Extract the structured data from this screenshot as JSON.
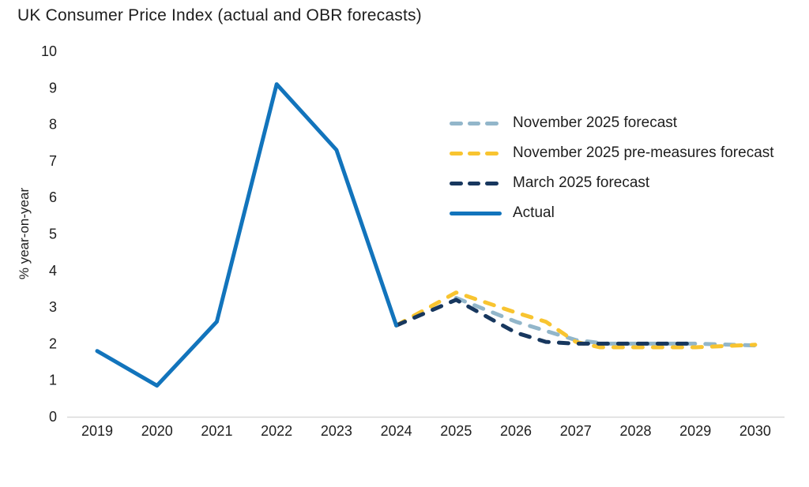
{
  "title": "UK Consumer Price Index (actual and OBR forecasts)",
  "colors": {
    "actual": "#1274bc",
    "november_2025_forecast": "#92b6ca",
    "november_2025_pre_measures_forecast": "#f8c430",
    "march_2025_forecast": "#17375e",
    "axis_line": "#d9d9d9",
    "text": "#1e1e1e"
  },
  "chart_data": {
    "type": "line",
    "title": "UK Consumer Price Index (actual and OBR forecasts)",
    "xlabel": "",
    "ylabel": "% year-on-year",
    "ylim": [
      0,
      10
    ],
    "y_ticks": [
      0,
      1,
      2,
      3,
      4,
      5,
      6,
      7,
      8,
      9,
      10
    ],
    "x_ticks": [
      "2019",
      "2020",
      "2021",
      "2022",
      "2023",
      "2024",
      "2025",
      "2026",
      "2027",
      "2028",
      "2029",
      "2030"
    ],
    "grid": false,
    "legend_position": "inside-upper-right",
    "series": [
      {
        "name": "November 2025 forecast",
        "color": "#92b6ca",
        "style": "dashed",
        "points": [
          [
            2025,
            3.25
          ],
          [
            2026,
            2.6
          ],
          [
            2026.5,
            2.35
          ],
          [
            2027,
            2.1
          ],
          [
            2027.5,
            2.0
          ],
          [
            2028,
            2.0
          ],
          [
            2029,
            2.0
          ],
          [
            2030,
            1.95
          ]
        ]
      },
      {
        "name": "November 2025 pre-measures forecast",
        "color": "#f8c430",
        "style": "dashed",
        "points": [
          [
            2024,
            2.5
          ],
          [
            2025,
            3.4
          ],
          [
            2026,
            2.85
          ],
          [
            2026.5,
            2.6
          ],
          [
            2027,
            2.05
          ],
          [
            2027.4,
            1.9
          ],
          [
            2028,
            1.9
          ],
          [
            2029,
            1.9
          ],
          [
            2030,
            1.97
          ]
        ]
      },
      {
        "name": "March 2025 forecast",
        "color": "#17375e",
        "style": "dashed",
        "points": [
          [
            2024,
            2.5
          ],
          [
            2025,
            3.2
          ],
          [
            2026,
            2.3
          ],
          [
            2026.5,
            2.05
          ],
          [
            2027,
            2.0
          ],
          [
            2028,
            2.0
          ],
          [
            2029,
            2.0
          ]
        ]
      },
      {
        "name": "Actual",
        "color": "#1274bc",
        "style": "solid",
        "points": [
          [
            2019,
            1.8
          ],
          [
            2020,
            0.85
          ],
          [
            2021,
            2.6
          ],
          [
            2022,
            9.1
          ],
          [
            2023,
            7.3
          ],
          [
            2024,
            2.5
          ]
        ]
      }
    ]
  }
}
